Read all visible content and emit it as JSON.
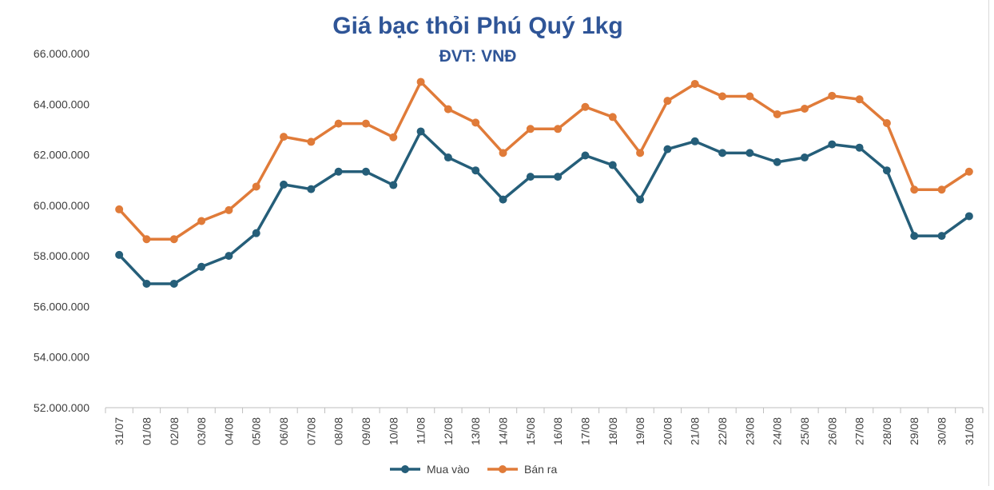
{
  "chart_data": {
    "type": "line",
    "title": "Giá bạc thỏi Phú Quý 1kg",
    "subtitle": "ĐVT: VNĐ",
    "xlabel": "",
    "ylabel": "",
    "ylim": [
      52000000,
      66000000
    ],
    "y_ticks": [
      52000000,
      54000000,
      56000000,
      58000000,
      60000000,
      62000000,
      64000000,
      66000000
    ],
    "y_tick_labels": [
      "52.000.000",
      "54.000.000",
      "56.000.000",
      "58.000.000",
      "60.000.000",
      "62.000.000",
      "64.000.000",
      "66.000.000"
    ],
    "categories": [
      "31/07",
      "01/08",
      "02/08",
      "03/08",
      "04/08",
      "05/08",
      "06/08",
      "07/08",
      "08/08",
      "09/08",
      "10/08",
      "11/08",
      "12/08",
      "13/08",
      "14/08",
      "15/08",
      "16/08",
      "17/08",
      "18/08",
      "19/08",
      "20/08",
      "21/08",
      "22/08",
      "23/08",
      "24/08",
      "25/08",
      "26/08",
      "27/08",
      "28/08",
      "29/08",
      "30/08",
      "31/08"
    ],
    "series": [
      {
        "name": "Mua vào",
        "color": "#255e79",
        "values": [
          58040000,
          56900000,
          56900000,
          57570000,
          58000000,
          58900000,
          60820000,
          60640000,
          61330000,
          61330000,
          60800000,
          62920000,
          61890000,
          61380000,
          60230000,
          61130000,
          61130000,
          61970000,
          61590000,
          60230000,
          62220000,
          62530000,
          62070000,
          62070000,
          61710000,
          61890000,
          62410000,
          62280000,
          61380000,
          58790000,
          58790000,
          59570000
        ]
      },
      {
        "name": "Bán ra",
        "color": "#e07b39",
        "values": [
          59840000,
          58660000,
          58660000,
          59380000,
          59810000,
          60740000,
          62710000,
          62510000,
          63230000,
          63230000,
          62690000,
          64880000,
          63800000,
          63270000,
          62070000,
          63020000,
          63020000,
          63890000,
          63490000,
          62070000,
          64130000,
          64800000,
          64310000,
          64310000,
          63600000,
          63820000,
          64330000,
          64190000,
          63250000,
          60620000,
          60620000,
          61330000
        ]
      }
    ],
    "grid": false,
    "legend": "bottom"
  }
}
